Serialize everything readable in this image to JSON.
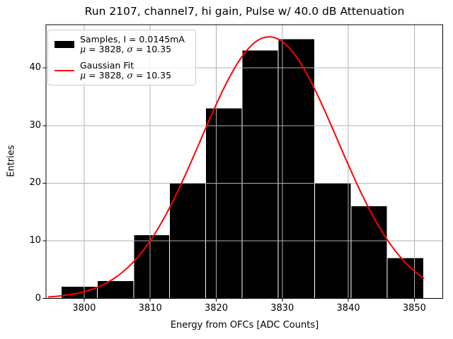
{
  "chart_data": {
    "type": "histogram",
    "title": "Run 2107, channel7, hi gain, Pulse w/ 40.0 dB Attenuation",
    "xlabel": "Energy from OFCs [ADC Counts]",
    "ylabel": "Entries",
    "xlim": [
      3794.2,
      3854.3
    ],
    "ylim": [
      0,
      47.5
    ],
    "x_ticks": [
      3800,
      3810,
      3820,
      3830,
      3840,
      3850
    ],
    "y_ticks": [
      0,
      10,
      20,
      30,
      40
    ],
    "grid": true,
    "grid_position": "above-bars-below-curve",
    "histogram": {
      "bin_edges": [
        3796.5,
        3802.0,
        3807.5,
        3812.9,
        3818.4,
        3823.9,
        3829.4,
        3834.9,
        3840.4,
        3845.9,
        3851.4
      ],
      "counts": [
        2,
        3,
        11,
        20,
        33,
        43,
        45,
        20,
        16,
        7
      ],
      "color": "#000000",
      "separator_color": "#ffffff"
    },
    "fit": {
      "type": "gaussian",
      "mu": 3828,
      "sigma": 10.35,
      "peak": 45.4,
      "x_range": [
        3794.6,
        3851.4
      ],
      "color": "#ff0000"
    },
    "colors": {
      "grid": "#b0b0b0",
      "axis": "#000000",
      "background": "#ffffff"
    }
  },
  "legend": {
    "entries": [
      {
        "swatch": "samples",
        "swatch_type": "patch",
        "color": "#000000",
        "label_line1": "Samples, I = 0.0145mA",
        "label_line2_parts": [
          [
            "μ",
            true
          ],
          [
            " = 3828, ",
            false
          ],
          [
            "σ",
            true
          ],
          [
            " = 10.35",
            false
          ]
        ]
      },
      {
        "swatch": "gaussian-fit",
        "swatch_type": "line",
        "color": "#ff0000",
        "label_line1": "Gaussian Fit",
        "label_line2_parts": [
          [
            "μ",
            true
          ],
          [
            " = 3828, ",
            false
          ],
          [
            "σ",
            true
          ],
          [
            " = 10.35",
            false
          ]
        ]
      }
    ]
  }
}
